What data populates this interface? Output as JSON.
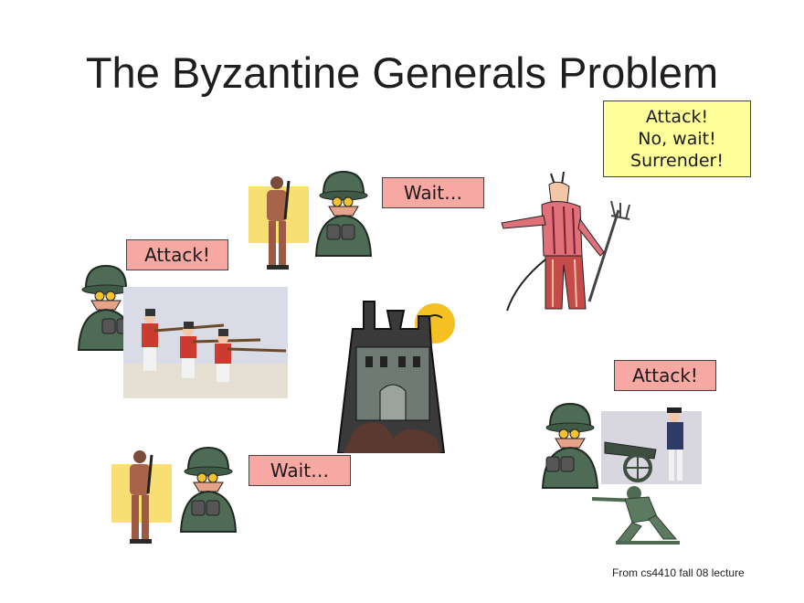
{
  "slide": {
    "title": "The Byzantine Generals Problem",
    "footer": "From cs4410 fall 08 lecture"
  },
  "bubbles": {
    "top_general": "Wait…",
    "left_general": "Attack!",
    "bottom_general": "Wait…",
    "right_general": "Attack!",
    "traitor_lines": [
      "Attack!",
      "No, wait!",
      "Surrender!"
    ]
  },
  "colors": {
    "pink_bubble": "#f8a8a2",
    "yellow_bubble": "#ffff99",
    "helmet_green": "#4e6b55",
    "castle_dark": "#3a3a3a"
  },
  "icons": {
    "general": "general-with-binoculars-icon",
    "soldier": "soldier-clipart-icon",
    "traitor": "devil-with-pitchfork-icon",
    "castle": "haunted-castle-icon",
    "firing_squad": "redcoat-firing-line-icon",
    "cannon": "colonial-cannon-icon",
    "army_man": "green-army-man-icon"
  }
}
